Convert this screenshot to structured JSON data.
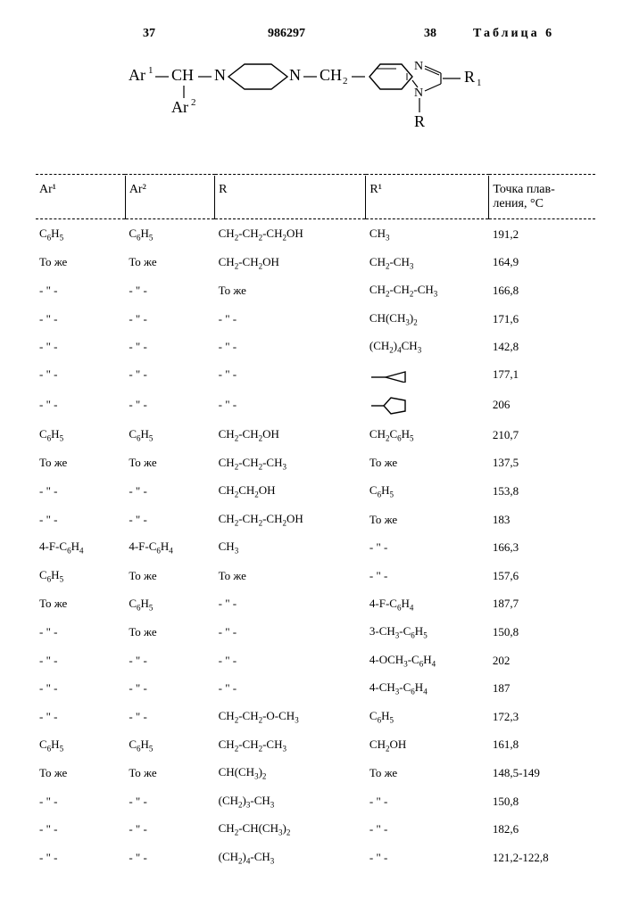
{
  "header": {
    "page_left": "37",
    "doc_number": "986297",
    "page_right": "38",
    "table_label": "Таблица 6"
  },
  "formula": {
    "text": "Ar¹—CH—N⟨piperazine⟩N—CH₂—⟨benzimidazole⟩—R₁ / Ar² / R"
  },
  "columns": [
    {
      "key": "ar1",
      "label": "Ar¹"
    },
    {
      "key": "ar2",
      "label": "Ar²"
    },
    {
      "key": "r",
      "label": "R"
    },
    {
      "key": "r1",
      "label": "R¹"
    },
    {
      "key": "mp",
      "label": "Точка плав-\nления, °С"
    }
  ],
  "rows": [
    {
      "ar1": "C₆H₅",
      "ar2": "C₆H₅",
      "r": "CH₂-CH₂-CH₂OH",
      "r1": "CH₃",
      "mp": "191,2"
    },
    {
      "ar1": "То же",
      "ar2": "То же",
      "r": "CH₂-CH₂OH",
      "r1": "CH₂-CH₃",
      "mp": "164,9"
    },
    {
      "ar1": "- \" -",
      "ar2": "- \" -",
      "r": "То же",
      "r1": "CH₂-CH₂-CH₃",
      "mp": "166,8"
    },
    {
      "ar1": "- \" -",
      "ar2": "- \" -",
      "r": "- \" -",
      "r1": "CH(CH₃)₂",
      "mp": "171,6"
    },
    {
      "ar1": "- \" -",
      "ar2": "- \" -",
      "r": "- \" -",
      "r1": "(CH₂)₄CH₃",
      "mp": "142,8"
    },
    {
      "ar1": "- \" -",
      "ar2": "- \" -",
      "r": "- \" -",
      "r1": "__TRIANGLE__",
      "mp": "177,1"
    },
    {
      "ar1": "- \" -",
      "ar2": "- \" -",
      "r": "- \" -",
      "r1": "__PENTAGON__",
      "mp": "206"
    },
    {
      "ar1": "C₆H₅",
      "ar2": "C₆H₅",
      "r": "CH₂-CH₂OH",
      "r1": "CH₂C₆H₅",
      "mp": "210,7"
    },
    {
      "ar1": "То же",
      "ar2": "То же",
      "r": "CH₂-CH₂-CH₃",
      "r1": "То же",
      "mp": "137,5"
    },
    {
      "ar1": "- \" -",
      "ar2": "- \" -",
      "r": "CH₂CH₂OH",
      "r1": "C₆H₅",
      "mp": "153,8"
    },
    {
      "ar1": "- \" -",
      "ar2": "- \" -",
      "r": "CH₂-CH₂-CH₂OH",
      "r1": "То же",
      "mp": "183"
    },
    {
      "ar1": "4-F-C₆H₄",
      "ar2": "4-F-C₆H₄",
      "r": "CH₃",
      "r1": "- \" -",
      "mp": "166,3"
    },
    {
      "ar1": "C₆H₅",
      "ar2": "То же",
      "r": "То же",
      "r1": "- \" -",
      "mp": "157,6"
    },
    {
      "ar1": "То же",
      "ar2": "C₆H₅",
      "r": "- \" -",
      "r1": "4-F-C₆H₄",
      "mp": "187,7"
    },
    {
      "ar1": "- \" -",
      "ar2": "То же",
      "r": "- \" -",
      "r1": "3-CH₃-C₆H₅",
      "mp": "150,8"
    },
    {
      "ar1": "- \" -",
      "ar2": "- \" -",
      "r": "- \" -",
      "r1": "4-OCH₃-C₆H₄",
      "mp": "202"
    },
    {
      "ar1": "- \" -",
      "ar2": "- \" -",
      "r": "- \" -",
      "r1": "4-CH₃-C₆H₄",
      "mp": "187"
    },
    {
      "ar1": "- \" -",
      "ar2": "- \" -",
      "r": "CH₂-CH₂-O-CH₃",
      "r1": "C₆H₅",
      "mp": "172,3"
    },
    {
      "ar1": "C₆H₅",
      "ar2": "C₆H₅",
      "r": "CH₂-CH₂-CH₃",
      "r1": "CH₂OH",
      "mp": "161,8"
    },
    {
      "ar1": "То же",
      "ar2": "То же",
      "r": "CH(CH₃)₂",
      "r1": "То же",
      "mp": "148,5-149"
    },
    {
      "ar1": "- \" -",
      "ar2": "- \" -",
      "r": "(CH₂)₃-CH₃",
      "r1": "- \" -",
      "mp": "150,8"
    },
    {
      "ar1": "- \" -",
      "ar2": "- \" -",
      "r": "CH₂-CH(CH₃)₂",
      "r1": "- \" -",
      "mp": "182,6"
    },
    {
      "ar1": "- \" -",
      "ar2": "- \" -",
      "r": "(CH₂)₄-CH₃",
      "r1": "- \" -",
      "mp": "121,2-122,8"
    }
  ],
  "style": {
    "background": "#ffffff",
    "text_color": "#000000",
    "font_family": "Times New Roman, serif",
    "body_fontsize": 14,
    "cell_fontsize": 13,
    "sub_fontsize": 9,
    "border_dash": "1px dashed #000",
    "col_widths_pct": [
      16,
      16,
      27,
      22,
      19
    ]
  }
}
